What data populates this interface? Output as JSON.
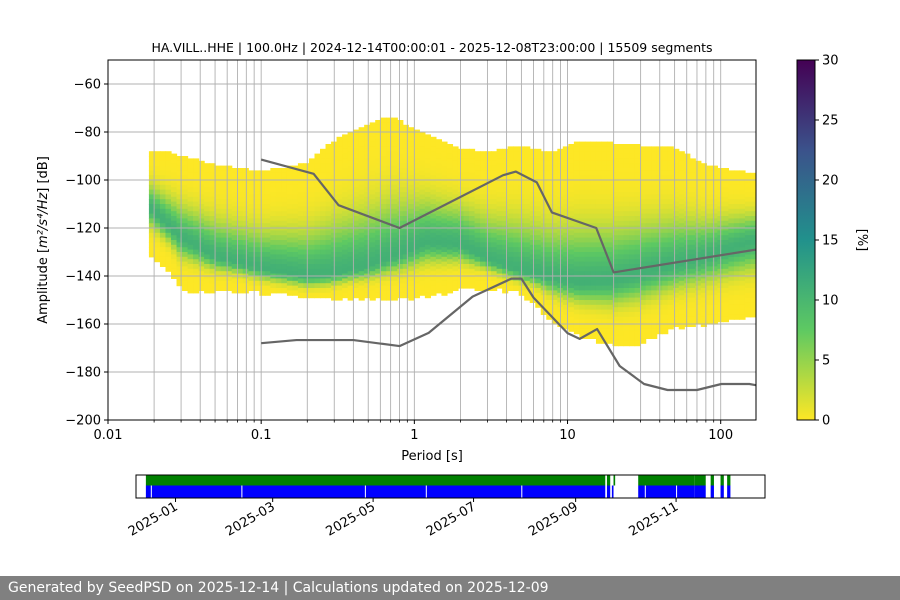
{
  "chart_data": {
    "type": "heatmap",
    "title": "HA.VILL..HHE | 100.0Hz | 2024-12-14T00:00:01 - 2025-12-08T23:00:00 | 15509 segments",
    "xlabel": "Period [s]",
    "ylabel_prefix": "Amplitude [",
    "ylabel_math": "m²/s⁴/Hz",
    "ylabel_suffix": "] [dB]",
    "xscale": "log",
    "xlim": [
      0.01,
      170
    ],
    "ylim": [
      -200,
      -50
    ],
    "x_ticks": [
      {
        "value": 0.01,
        "label": "0.01"
      },
      {
        "value": 0.1,
        "label": "0.1"
      },
      {
        "value": 1,
        "label": "1"
      },
      {
        "value": 10,
        "label": "10"
      },
      {
        "value": 100,
        "label": "100"
      }
    ],
    "y_ticks": [
      {
        "value": -60,
        "label": "−60"
      },
      {
        "value": -80,
        "label": "−80"
      },
      {
        "value": -100,
        "label": "−100"
      },
      {
        "value": -120,
        "label": "−120"
      },
      {
        "value": -140,
        "label": "−140"
      },
      {
        "value": -160,
        "label": "−160"
      },
      {
        "value": -180,
        "label": "−180"
      },
      {
        "value": -200,
        "label": "−200"
      }
    ],
    "grid": true,
    "colorbar": {
      "label": "[%]",
      "range": [
        0,
        30
      ],
      "ticks": [
        {
          "value": 0,
          "label": "0"
        },
        {
          "value": 5,
          "label": "5"
        },
        {
          "value": 10,
          "label": "10"
        },
        {
          "value": 15,
          "label": "15"
        },
        {
          "value": 20,
          "label": "20"
        },
        {
          "value": 25,
          "label": "25"
        },
        {
          "value": 30,
          "label": "30"
        }
      ],
      "colormap": [
        "#fde725",
        "#5ec962",
        "#21918c",
        "#3b528b",
        "#440154"
      ]
    },
    "psd_mode": [
      [
        0.0185,
        -111
      ],
      [
        0.03,
        -124
      ],
      [
        0.05,
        -132
      ],
      [
        0.1,
        -137
      ],
      [
        0.2,
        -140
      ],
      [
        0.3,
        -139
      ],
      [
        0.5,
        -136
      ],
      [
        0.8,
        -131
      ],
      [
        1.2,
        -126
      ],
      [
        2,
        -127
      ],
      [
        3,
        -133
      ],
      [
        5,
        -138
      ],
      [
        8,
        -141
      ],
      [
        12,
        -143
      ],
      [
        20,
        -142
      ],
      [
        40,
        -137
      ],
      [
        80,
        -132
      ],
      [
        170,
        -125
      ]
    ],
    "psd_upper": [
      [
        0.0185,
        -87
      ],
      [
        0.025,
        -88
      ],
      [
        0.05,
        -93
      ],
      [
        0.1,
        -96
      ],
      [
        0.2,
        -92
      ],
      [
        0.3,
        -83
      ],
      [
        0.5,
        -76
      ],
      [
        0.7,
        -73
      ],
      [
        1,
        -78
      ],
      [
        1.5,
        -83
      ],
      [
        2,
        -86
      ],
      [
        3,
        -88
      ],
      [
        5,
        -85
      ],
      [
        8,
        -88
      ],
      [
        12,
        -83
      ],
      [
        20,
        -84
      ],
      [
        30,
        -85
      ],
      [
        50,
        -86
      ],
      [
        80,
        -93
      ],
      [
        170,
        -97
      ]
    ],
    "psd_lower": [
      [
        0.0185,
        -130
      ],
      [
        0.025,
        -137
      ],
      [
        0.03,
        -145
      ],
      [
        0.05,
        -146
      ],
      [
        0.1,
        -146
      ],
      [
        0.2,
        -148
      ],
      [
        0.3,
        -149
      ],
      [
        0.5,
        -149
      ],
      [
        1,
        -148
      ],
      [
        2,
        -145
      ],
      [
        3,
        -144
      ],
      [
        5,
        -146
      ],
      [
        8,
        -158
      ],
      [
        12,
        -164
      ],
      [
        20,
        -168
      ],
      [
        30,
        -167
      ],
      [
        50,
        -161
      ],
      [
        100,
        -158
      ],
      [
        170,
        -156
      ]
    ],
    "series": [
      {
        "name": "NHNM",
        "color": "#666666",
        "x": [
          0.1,
          0.22,
          0.32,
          0.8,
          3.8,
          4.6,
          6.3,
          7.9,
          15.4,
          20,
          170
        ],
        "y": [
          -91.5,
          -97.4,
          -110.5,
          -120,
          -98,
          -96.5,
          -101,
          -113.5,
          -120,
          -138.5,
          -129
        ]
      },
      {
        "name": "NLNM",
        "color": "#666666",
        "x": [
          0.1,
          0.17,
          0.4,
          0.8,
          1.24,
          2.4,
          4.3,
          5.0,
          6.0,
          10.0,
          12.0,
          15.6,
          21.9,
          31.6,
          45,
          70,
          101,
          154,
          170
        ],
        "y": [
          -168,
          -166.7,
          -166.7,
          -169.2,
          -163.7,
          -148.6,
          -141.1,
          -141.1,
          -149.0,
          -163.8,
          -166.2,
          -162.1,
          -177.5,
          -185.0,
          -187.5,
          -187.5,
          -185.0,
          -185.0,
          -185.5
        ]
      }
    ]
  },
  "coverage": {
    "x_ticks": [
      {
        "date": "2025-01-01",
        "label": "2025-01"
      },
      {
        "date": "2025-03-01",
        "label": "2025-03"
      },
      {
        "date": "2025-05-01",
        "label": "2025-05"
      },
      {
        "date": "2025-07-01",
        "label": "2025-07"
      },
      {
        "date": "2025-09-01",
        "label": "2025-09"
      },
      {
        "date": "2025-11-01",
        "label": "2025-11"
      }
    ],
    "range": [
      "2024-12-08",
      "2025-12-25"
    ],
    "green_color": "#008000",
    "blue_color": "#0000ff",
    "data_segments": [
      [
        "2024-12-14",
        "2025-09-19"
      ],
      [
        "2025-09-20",
        "2025-09-22"
      ],
      [
        "2025-09-24",
        "2025-09-25"
      ],
      [
        "2025-10-09",
        "2025-11-12"
      ],
      [
        "2025-11-12",
        "2025-11-19"
      ],
      [
        "2025-11-22",
        "2025-11-24"
      ],
      [
        "2025-11-28",
        "2025-11-30"
      ],
      [
        "2025-12-02",
        "2025-12-04"
      ]
    ],
    "psd_segments": [
      [
        "2024-12-14",
        "2025-09-19"
      ],
      [
        "2025-09-20",
        "2025-09-22"
      ],
      [
        "2025-09-23",
        "2025-09-24"
      ],
      [
        "2025-10-09",
        "2025-11-12"
      ],
      [
        "2025-11-12",
        "2025-11-19"
      ],
      [
        "2025-11-22",
        "2025-11-24"
      ],
      [
        "2025-11-28",
        "2025-11-30"
      ],
      [
        "2025-12-02",
        "2025-12-04"
      ]
    ],
    "blue_gaps": [
      "2024-12-17",
      "2025-02-10",
      "2025-04-26",
      "2025-06-02",
      "2025-07-30",
      "2025-10-13",
      "2025-11-01"
    ]
  },
  "footer": {
    "text": "Generated by SeedPSD on 2025-12-14 | Calculations updated on 2025-12-09"
  }
}
